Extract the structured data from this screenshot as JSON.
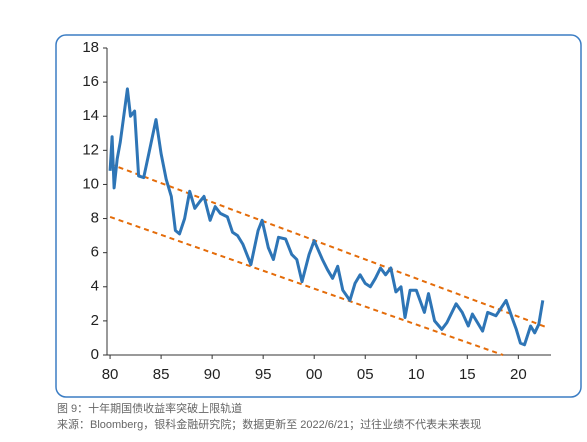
{
  "chart_data": {
    "type": "line",
    "x": [
      1980.0,
      1980.2,
      1980.4,
      1980.7,
      1981.0,
      1981.3,
      1981.7,
      1982.0,
      1982.4,
      1982.8,
      1983.3,
      1983.8,
      1984.5,
      1985.0,
      1985.5,
      1986.0,
      1986.4,
      1986.8,
      1987.3,
      1987.8,
      1988.3,
      1988.8,
      1989.2,
      1989.8,
      1990.3,
      1990.8,
      1991.5,
      1992.0,
      1992.5,
      1993.0,
      1993.8,
      1994.5,
      1994.9,
      1995.5,
      1996.0,
      1996.5,
      1997.2,
      1997.8,
      1998.3,
      1998.8,
      1999.5,
      2000.0,
      2000.8,
      2001.3,
      2001.8,
      2002.3,
      2002.8,
      2003.5,
      2004.0,
      2004.5,
      2005.0,
      2005.5,
      2006.0,
      2006.5,
      2007.0,
      2007.5,
      2008.0,
      2008.5,
      2008.9,
      2009.4,
      2010.0,
      2010.8,
      2011.2,
      2011.8,
      2012.5,
      2013.0,
      2013.9,
      2014.5,
      2015.1,
      2015.5,
      2016.5,
      2017.0,
      2017.8,
      2018.8,
      2019.5,
      2019.8,
      2020.2,
      2020.6,
      2021.2,
      2021.6,
      2022.0,
      2022.4
    ],
    "series": [
      {
        "color": "#2e75b6",
        "values": [
          10.8,
          12.8,
          9.8,
          11.5,
          12.5,
          13.8,
          15.6,
          14.0,
          14.3,
          10.5,
          10.4,
          11.8,
          13.8,
          11.8,
          10.3,
          9.3,
          7.3,
          7.1,
          8.0,
          9.6,
          8.6,
          9.0,
          9.3,
          7.9,
          8.7,
          8.3,
          8.1,
          7.2,
          7.0,
          6.5,
          5.3,
          7.3,
          7.9,
          6.3,
          5.6,
          6.9,
          6.8,
          5.9,
          5.6,
          4.3,
          5.9,
          6.7,
          5.6,
          5.0,
          4.5,
          5.2,
          3.8,
          3.2,
          4.2,
          4.7,
          4.2,
          4.0,
          4.5,
          5.1,
          4.7,
          5.1,
          3.7,
          4.0,
          2.2,
          3.8,
          3.8,
          2.5,
          3.6,
          2.0,
          1.5,
          1.9,
          3.0,
          2.5,
          1.7,
          2.4,
          1.4,
          2.5,
          2.3,
          3.2,
          2.0,
          1.5,
          0.7,
          0.6,
          1.7,
          1.3,
          1.8,
          3.2
        ]
      }
    ],
    "trend_lines": [
      {
        "color": "#e46c0a",
        "x": [
          1980.0,
          2022.9
        ],
        "values": [
          11.2,
          1.6
        ]
      },
      {
        "color": "#e46c0a",
        "x": [
          1980.0,
          2018.5
        ],
        "values": [
          8.1,
          0
        ]
      }
    ],
    "xlim": [
      1979.7,
      2023.2
    ],
    "xticks": [
      {
        "value": 1980,
        "label": "80"
      },
      {
        "value": 1985,
        "label": "85"
      },
      {
        "value": 1990,
        "label": "90"
      },
      {
        "value": 1995,
        "label": "95"
      },
      {
        "value": 2000,
        "label": "00"
      },
      {
        "value": 2005,
        "label": "05"
      },
      {
        "value": 2010,
        "label": "10"
      },
      {
        "value": 2015,
        "label": "15"
      },
      {
        "value": 2020,
        "label": "20"
      }
    ],
    "ylim": [
      0,
      18
    ],
    "yticks": [
      0,
      2,
      4,
      6,
      8,
      10,
      12,
      14,
      16,
      18
    ]
  },
  "caption": [
    "图 9：十年期国债收益率突破上限轨道",
    "来源：Bloomberg，银科金融研究院；数据更新至 2022/6/21；过往业绩不代表未来表现"
  ]
}
